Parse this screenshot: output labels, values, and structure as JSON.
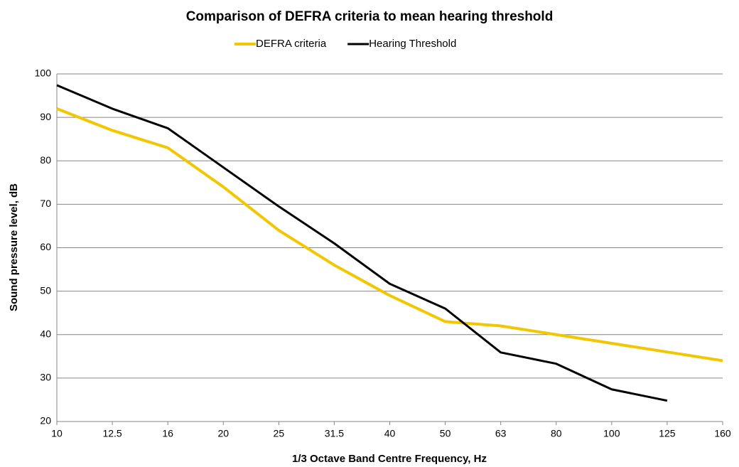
{
  "chart_data": {
    "type": "line",
    "title": "Comparison of DEFRA criteria to mean hearing threshold",
    "x_label": "1/3 Octave Band Centre Frequency, Hz",
    "y_label": "Sound pressure level, dB",
    "categories": [
      "10",
      "12.5",
      "16",
      "20",
      "25",
      "31.5",
      "40",
      "50",
      "63",
      "80",
      "100",
      "125",
      "160"
    ],
    "series": [
      {
        "name": "DEFRA criteria",
        "color": "#f2c700",
        "values": [
          92,
          87,
          83,
          74,
          64,
          56,
          49,
          43,
          42,
          40,
          38,
          36,
          34
        ]
      },
      {
        "name": "Hearing Threshold",
        "color": "#000000",
        "values": [
          97.4,
          92,
          87.5,
          78.5,
          69.5,
          61,
          51.7,
          46,
          35.9,
          33.3,
          27.4,
          24.8,
          null
        ]
      }
    ],
    "ylim": [
      20,
      100
    ],
    "yticks": [
      20,
      30,
      40,
      50,
      60,
      70,
      80,
      90,
      100
    ],
    "grid": true,
    "legend": "top"
  }
}
